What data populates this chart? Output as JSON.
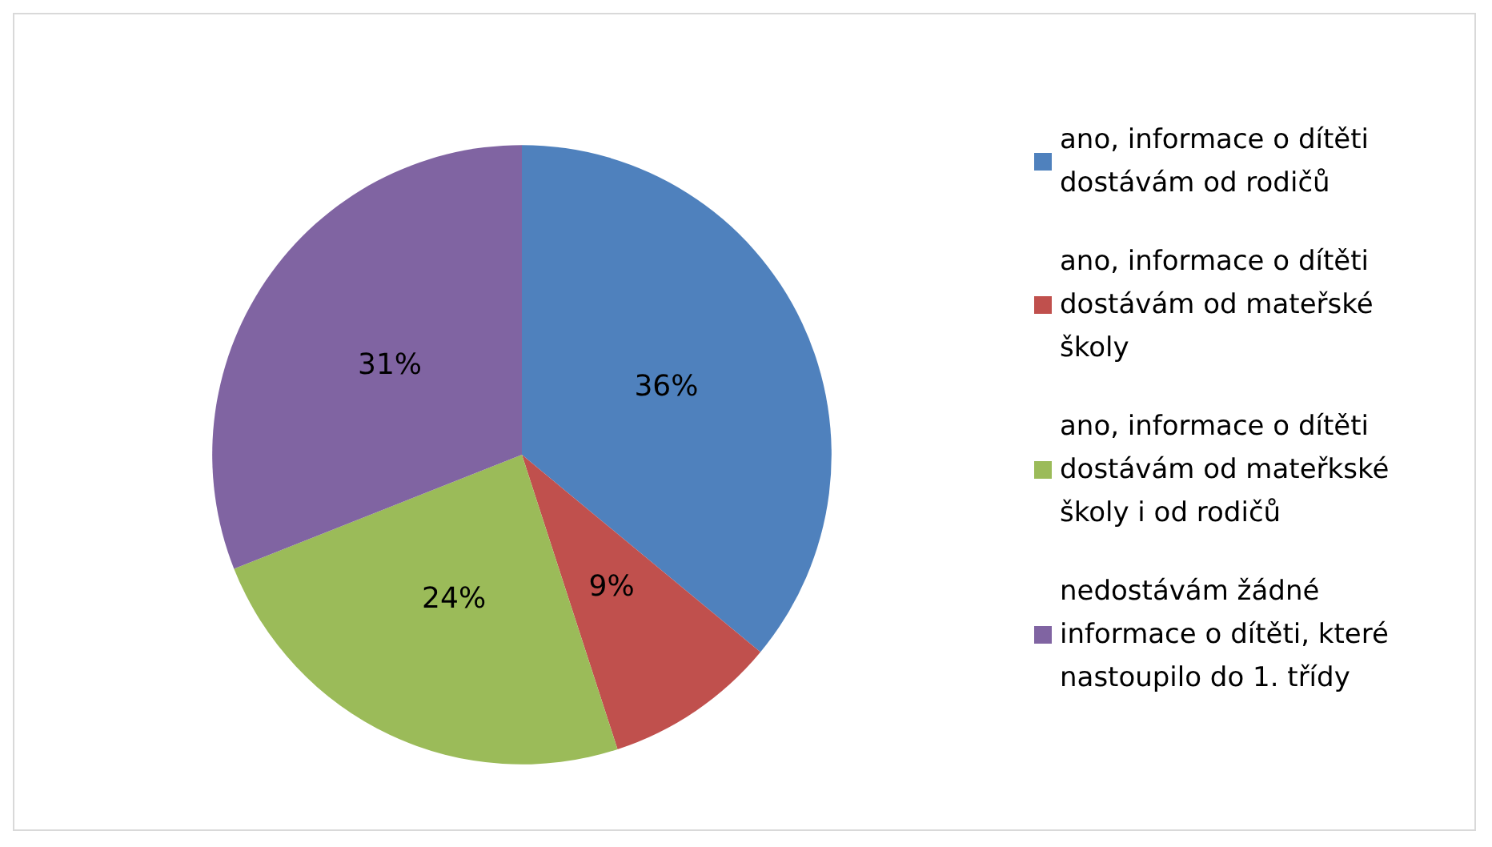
{
  "chart_data": {
    "type": "pie",
    "categories": [
      "ano, informace o dítěti dostávám od rodičů",
      "ano, informace o dítěti dostávám od mateřské školy",
      "ano, informace o dítěti dostávám od mateřkské školy i od rodičů",
      "nedostávám žádné informace o dítěti, které nastoupilo do 1. třídy"
    ],
    "values": [
      36,
      9,
      24,
      31
    ],
    "colors": [
      "#4f81bd",
      "#c0504d",
      "#9bbb59",
      "#8064a2"
    ],
    "value_labels": [
      "36%",
      "9%",
      "24%",
      "31%"
    ],
    "legend": "right"
  }
}
